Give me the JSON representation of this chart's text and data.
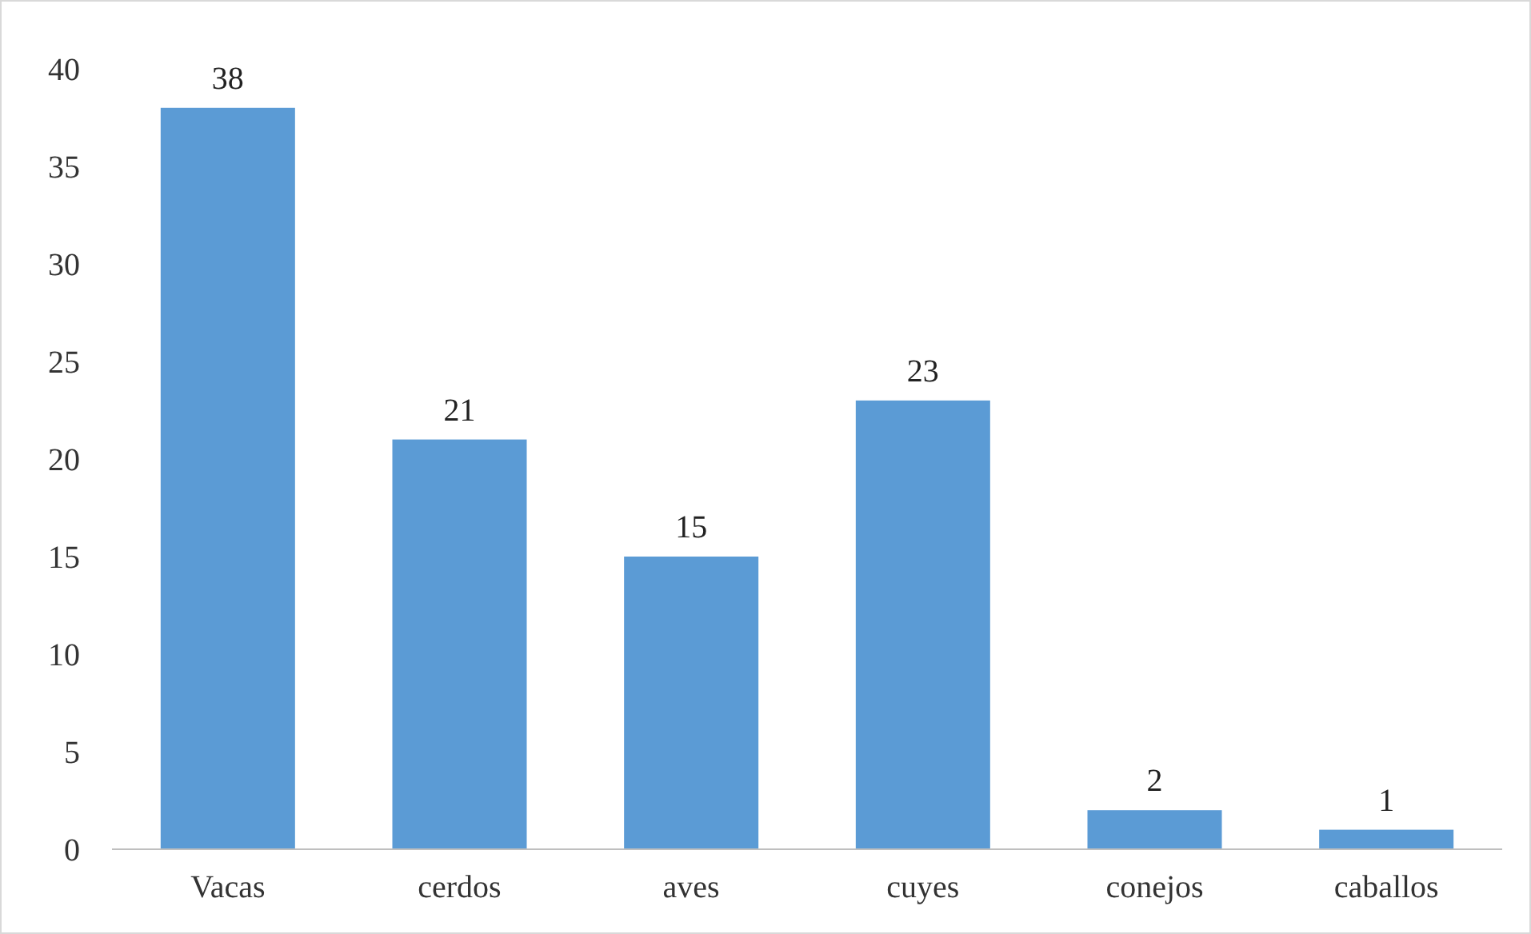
{
  "chart_data": {
    "type": "bar",
    "categories": [
      "Vacas",
      "cerdos",
      "aves",
      "cuyes",
      "conejos",
      "caballos"
    ],
    "values": [
      38,
      21,
      15,
      23,
      2,
      1
    ],
    "color": "#5b9bd5",
    "ylim": [
      0,
      40
    ],
    "yticks": [
      0,
      5,
      10,
      15,
      20,
      25,
      30,
      35,
      40
    ],
    "data_labels": true,
    "grid": false
  }
}
